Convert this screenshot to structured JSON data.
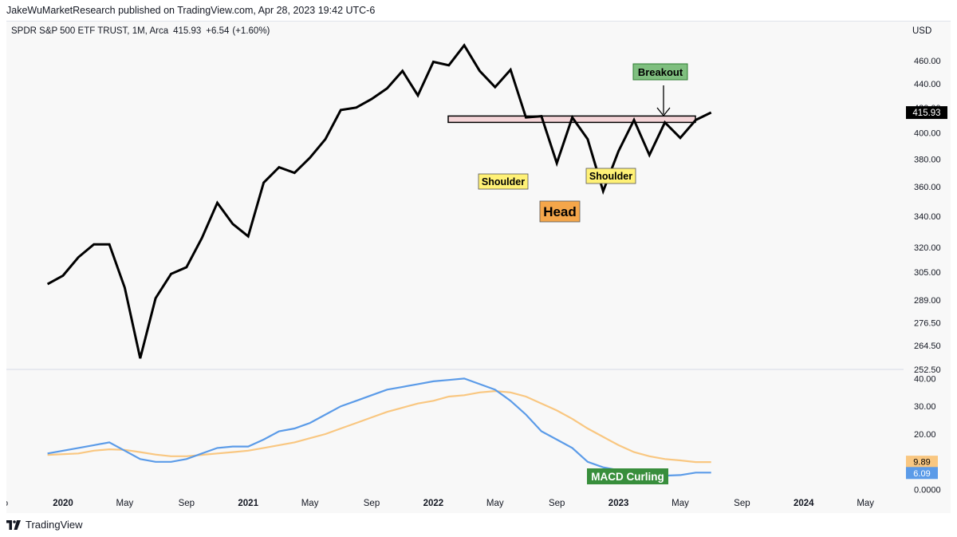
{
  "header": {
    "published": "JakeWuMarketResearch published on TradingView.com, Apr 28, 2023 19:42 UTC-6"
  },
  "symbol": {
    "name": "SPDR S&P 500 ETF TRUST",
    "interval": "1M",
    "exchange": "Arca",
    "last": "415.93",
    "change": "+6.54",
    "change_pct": "(+1.60%)",
    "currency": "USD"
  },
  "colors": {
    "price_line": "#000000",
    "macd_line": "#5b9be8",
    "signal_line": "#f9c781",
    "resistance_fill": "#f5d5d8",
    "breakout_bg": "#7fbf7f",
    "shoulder_bg": "#fff176",
    "head_bg": "#f4a64a",
    "macd_label_bg": "#388e3c",
    "price_tag_bg": "#000000"
  },
  "chart_data": [
    {
      "type": "line",
      "name": "SPY monthly price",
      "title": "SPDR S&P 500 ETF TRUST, 1M, Arca",
      "x_unit": "months since Jan 2020",
      "x": [
        -1,
        0,
        1,
        2,
        3,
        4,
        5,
        6,
        7,
        8,
        9,
        10,
        11,
        12,
        13,
        14,
        15,
        16,
        17,
        18,
        19,
        20,
        21,
        22,
        23,
        24,
        25,
        26,
        27,
        28,
        29,
        30,
        31,
        32,
        33,
        34,
        35,
        36,
        37,
        38,
        39,
        40,
        41,
        42
      ],
      "values": [
        298,
        303,
        314,
        322,
        322,
        296,
        258,
        290,
        304,
        308,
        326,
        349,
        335,
        327,
        363,
        374,
        370,
        381,
        395,
        418,
        420,
        427,
        436,
        451,
        430,
        459,
        456,
        474,
        451,
        437,
        452,
        412,
        413,
        377,
        412,
        395,
        357,
        386,
        410,
        383,
        408,
        396,
        410,
        416
      ],
      "y_ticks": [
        "460.00",
        "440.00",
        "420.00",
        "400.00",
        "380.00",
        "360.00",
        "340.00",
        "320.00",
        "305.00",
        "289.00",
        "276.50",
        "264.50",
        "252.50"
      ],
      "y_scale": "log",
      "ylim": [
        252.5,
        485
      ],
      "resistance_level": 410,
      "last_price_label": "415.93",
      "annotations": {
        "breakout": "Breakout",
        "left_shoulder": "Shoulder",
        "head": "Head",
        "right_shoulder": "Shoulder"
      }
    },
    {
      "type": "line",
      "name": "MACD",
      "x_unit": "months since Jan 2020",
      "series": [
        {
          "name": "MACD",
          "x": [
            -1,
            1,
            2,
            3,
            4,
            5,
            6,
            7,
            8,
            9,
            10,
            11,
            12,
            13,
            14,
            15,
            16,
            17,
            18,
            19,
            20,
            21,
            22,
            23,
            24,
            25,
            26,
            27,
            28,
            29,
            30,
            31,
            32,
            33,
            34,
            35,
            36,
            37,
            38,
            39,
            40,
            41,
            42
          ],
          "values": [
            13,
            15,
            16,
            17,
            14,
            11,
            10,
            10,
            11,
            13,
            15,
            15.5,
            15.5,
            18,
            21,
            22,
            24,
            27,
            30,
            32,
            34,
            36,
            37,
            38,
            39,
            39.5,
            40,
            38,
            36,
            32,
            27,
            21,
            18,
            15,
            10,
            8,
            7,
            6,
            6,
            5,
            5.2,
            6.09,
            6.09
          ],
          "last_label": "6.09"
        },
        {
          "name": "Signal",
          "x": [
            -1,
            1,
            2,
            3,
            4,
            5,
            6,
            7,
            8,
            9,
            10,
            11,
            12,
            13,
            14,
            15,
            16,
            17,
            18,
            19,
            20,
            21,
            22,
            23,
            24,
            25,
            26,
            27,
            28,
            29,
            30,
            31,
            32,
            33,
            34,
            35,
            36,
            37,
            38,
            39,
            40,
            41,
            42
          ],
          "values": [
            12.5,
            13,
            14,
            14.5,
            14.3,
            13.5,
            12.6,
            12,
            12,
            12.5,
            13,
            13.5,
            14,
            15,
            16,
            17,
            18.5,
            20,
            22,
            24,
            26,
            28,
            29.5,
            31,
            32,
            33.5,
            34,
            35,
            35.5,
            35,
            33.5,
            31,
            28.5,
            25.5,
            22,
            19,
            16,
            13.5,
            12,
            11,
            10.5,
            9.89,
            9.89
          ],
          "last_label": "9.89"
        }
      ],
      "y_ticks": [
        "40.00",
        "30.00",
        "20.00",
        "10.00",
        "0.0000"
      ],
      "ylim": [
        -1,
        43
      ],
      "annotation": "MACD Curling"
    }
  ],
  "x_axis": {
    "start_label": "o",
    "ticks": [
      {
        "label": "2020",
        "m": 0,
        "bold": true
      },
      {
        "label": "May",
        "m": 4
      },
      {
        "label": "Sep",
        "m": 8
      },
      {
        "label": "2021",
        "m": 12,
        "bold": true
      },
      {
        "label": "May",
        "m": 16
      },
      {
        "label": "Sep",
        "m": 20
      },
      {
        "label": "2022",
        "m": 24,
        "bold": true
      },
      {
        "label": "May",
        "m": 28
      },
      {
        "label": "Sep",
        "m": 32
      },
      {
        "label": "2023",
        "m": 36,
        "bold": true
      },
      {
        "label": "May",
        "m": 40
      },
      {
        "label": "Sep",
        "m": 44
      },
      {
        "label": "2024",
        "m": 48,
        "bold": true
      },
      {
        "label": "May",
        "m": 52
      }
    ]
  },
  "footer": {
    "brand": "TradingView"
  }
}
